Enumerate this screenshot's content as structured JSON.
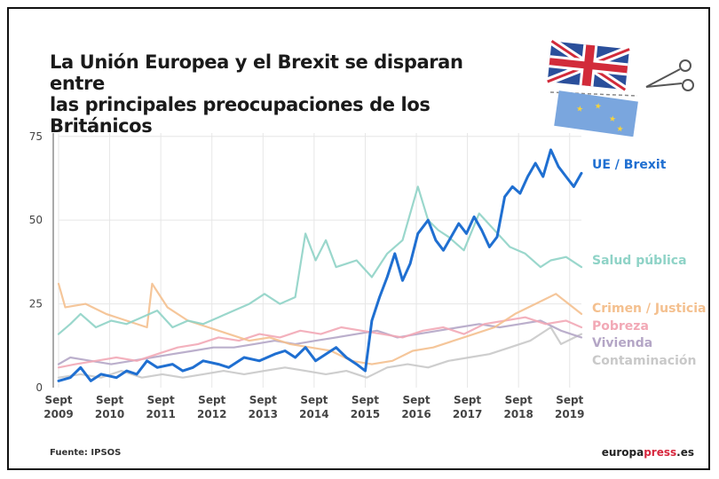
{
  "title_lines": [
    "La Unión Europea y el Brexit se disparan entre",
    "las principales preocupaciones de los Británicos"
  ],
  "source": "Fuente: IPSOS",
  "brand": {
    "part1": "europa",
    "part2": "press",
    "part3": ".es"
  },
  "colors": {
    "ue": "#1f6fd1",
    "salud": "#8fd3c7",
    "crimen": "#f4c08f",
    "pobreza": "#f2a9b6",
    "vivienda": "#b4a6c6",
    "contaminacion": "#c9c9c9",
    "brand_accent": "#d7263d"
  },
  "chart_data": {
    "type": "line",
    "title": "La Unión Europea y el Brexit se disparan entre las principales preocupaciones de los Británicos",
    "x_ticks": [
      {
        "x": 2009.67,
        "line1": "Sept",
        "line2": "2009"
      },
      {
        "x": 2010.67,
        "line1": "Sept",
        "line2": "2010"
      },
      {
        "x": 2011.67,
        "line1": "Sept",
        "line2": "2011"
      },
      {
        "x": 2012.67,
        "line1": "Sept",
        "line2": "2012"
      },
      {
        "x": 2013.67,
        "line1": "Sept",
        "line2": "2013"
      },
      {
        "x": 2014.67,
        "line1": "Sept",
        "line2": "2014"
      },
      {
        "x": 2015.67,
        "line1": "Sept",
        "line2": "2015"
      },
      {
        "x": 2016.67,
        "line1": "Sept",
        "line2": "2016"
      },
      {
        "x": 2017.67,
        "line1": "Sept",
        "line2": "2017"
      },
      {
        "x": 2018.67,
        "line1": "Sept",
        "line2": "2018"
      },
      {
        "x": 2019.67,
        "line1": "Sept",
        "line2": "2019"
      }
    ],
    "y_ticks": [
      0,
      25,
      50,
      75
    ],
    "xlim": [
      2009.67,
      2019.9
    ],
    "ylim": [
      0,
      76
    ],
    "series": [
      {
        "name": "Contaminación",
        "key": "contaminacion",
        "x": [
          2009.67,
          2010.1,
          2010.5,
          2010.9,
          2011.3,
          2011.7,
          2012.1,
          2012.5,
          2012.9,
          2013.3,
          2013.7,
          2014.1,
          2014.5,
          2014.9,
          2015.3,
          2015.7,
          2016.1,
          2016.5,
          2016.9,
          2017.3,
          2017.7,
          2018.1,
          2018.5,
          2018.9,
          2019.3,
          2019.5,
          2019.9
        ],
        "y": [
          3,
          4,
          3,
          5,
          3,
          4,
          3,
          4,
          5,
          4,
          5,
          6,
          5,
          4,
          5,
          3,
          6,
          7,
          6,
          8,
          9,
          10,
          12,
          14,
          18,
          13,
          16
        ]
      },
      {
        "name": "Vivienda",
        "key": "vivienda",
        "x": [
          2009.67,
          2009.9,
          2010.3,
          2010.7,
          2011.1,
          2011.5,
          2011.9,
          2012.3,
          2012.7,
          2013.1,
          2013.5,
          2013.9,
          2014.3,
          2014.7,
          2015.1,
          2015.5,
          2015.9,
          2016.3,
          2016.7,
          2017.1,
          2017.5,
          2017.9,
          2018.3,
          2018.7,
          2019.1,
          2019.5,
          2019.9
        ],
        "y": [
          7,
          9,
          8,
          7,
          8,
          9,
          10,
          11,
          12,
          12,
          13,
          14,
          13,
          14,
          15,
          16,
          17,
          15,
          16,
          17,
          18,
          19,
          18,
          19,
          20,
          17,
          15
        ]
      },
      {
        "name": "Pobreza",
        "key": "pobreza",
        "x": [
          2009.67,
          2010.0,
          2010.4,
          2010.8,
          2011.2,
          2011.6,
          2012.0,
          2012.4,
          2012.8,
          2013.2,
          2013.6,
          2014.0,
          2014.4,
          2014.8,
          2015.2,
          2015.6,
          2016.0,
          2016.4,
          2016.8,
          2017.2,
          2017.6,
          2018.0,
          2018.4,
          2018.8,
          2019.2,
          2019.6,
          2019.9
        ],
        "y": [
          6,
          7,
          8,
          9,
          8,
          10,
          12,
          13,
          15,
          14,
          16,
          15,
          17,
          16,
          18,
          17,
          16,
          15,
          17,
          18,
          16,
          19,
          20,
          21,
          19,
          20,
          18
        ]
      },
      {
        "name": "Crimen / Justicia",
        "key": "crimen",
        "x": [
          2009.67,
          2009.8,
          2010.2,
          2010.6,
          2011.0,
          2011.4,
          2011.5,
          2011.8,
          2012.2,
          2012.6,
          2013.0,
          2013.4,
          2013.8,
          2014.2,
          2014.6,
          2015.0,
          2015.4,
          2015.8,
          2016.2,
          2016.6,
          2017.0,
          2017.4,
          2017.8,
          2018.2,
          2018.6,
          2019.0,
          2019.4,
          2019.9
        ],
        "y": [
          31,
          24,
          25,
          22,
          20,
          18,
          31,
          24,
          20,
          18,
          16,
          14,
          15,
          13,
          12,
          11,
          8,
          7,
          8,
          11,
          12,
          14,
          16,
          18,
          22,
          25,
          28,
          22
        ]
      },
      {
        "name": "Salud pública",
        "key": "salud",
        "x": [
          2009.67,
          2009.9,
          2010.1,
          2010.4,
          2010.7,
          2011.0,
          2011.3,
          2011.6,
          2011.9,
          2012.2,
          2012.5,
          2012.8,
          2013.1,
          2013.4,
          2013.7,
          2014.0,
          2014.3,
          2014.5,
          2014.7,
          2014.9,
          2015.1,
          2015.3,
          2015.5,
          2015.8,
          2016.1,
          2016.4,
          2016.7,
          2016.9,
          2017.1,
          2017.3,
          2017.6,
          2017.9,
          2018.2,
          2018.5,
          2018.8,
          2019.1,
          2019.3,
          2019.6,
          2019.9
        ],
        "y": [
          16,
          19,
          22,
          18,
          20,
          19,
          21,
          23,
          18,
          20,
          19,
          21,
          23,
          25,
          28,
          25,
          27,
          46,
          38,
          44,
          36,
          37,
          38,
          33,
          40,
          44,
          60,
          50,
          47,
          45,
          41,
          52,
          47,
          42,
          40,
          36,
          38,
          39,
          36
        ]
      },
      {
        "name": "UE / Brexit",
        "key": "ue",
        "x": [
          2009.67,
          2009.9,
          2010.1,
          2010.3,
          2010.5,
          2010.8,
          2011.0,
          2011.2,
          2011.4,
          2011.6,
          2011.9,
          2012.1,
          2012.3,
          2012.5,
          2012.8,
          2013.0,
          2013.3,
          2013.6,
          2013.9,
          2014.1,
          2014.3,
          2014.5,
          2014.7,
          2014.9,
          2015.1,
          2015.3,
          2015.5,
          2015.67,
          2015.8,
          2015.95,
          2016.1,
          2016.25,
          2016.4,
          2016.55,
          2016.7,
          2016.9,
          2017.05,
          2017.2,
          2017.35,
          2017.5,
          2017.65,
          2017.8,
          2017.95,
          2018.1,
          2018.25,
          2018.4,
          2018.55,
          2018.7,
          2018.85,
          2019.0,
          2019.15,
          2019.3,
          2019.45,
          2019.6,
          2019.75,
          2019.9
        ],
        "y": [
          2,
          3,
          6,
          2,
          4,
          3,
          5,
          4,
          8,
          6,
          7,
          5,
          6,
          8,
          7,
          6,
          9,
          8,
          10,
          11,
          9,
          12,
          8,
          10,
          12,
          9,
          7,
          5,
          20,
          27,
          33,
          40,
          32,
          37,
          46,
          50,
          44,
          41,
          45,
          49,
          46,
          51,
          47,
          42,
          45,
          57,
          60,
          58,
          63,
          67,
          63,
          71,
          66,
          63,
          60,
          64
        ]
      }
    ]
  }
}
